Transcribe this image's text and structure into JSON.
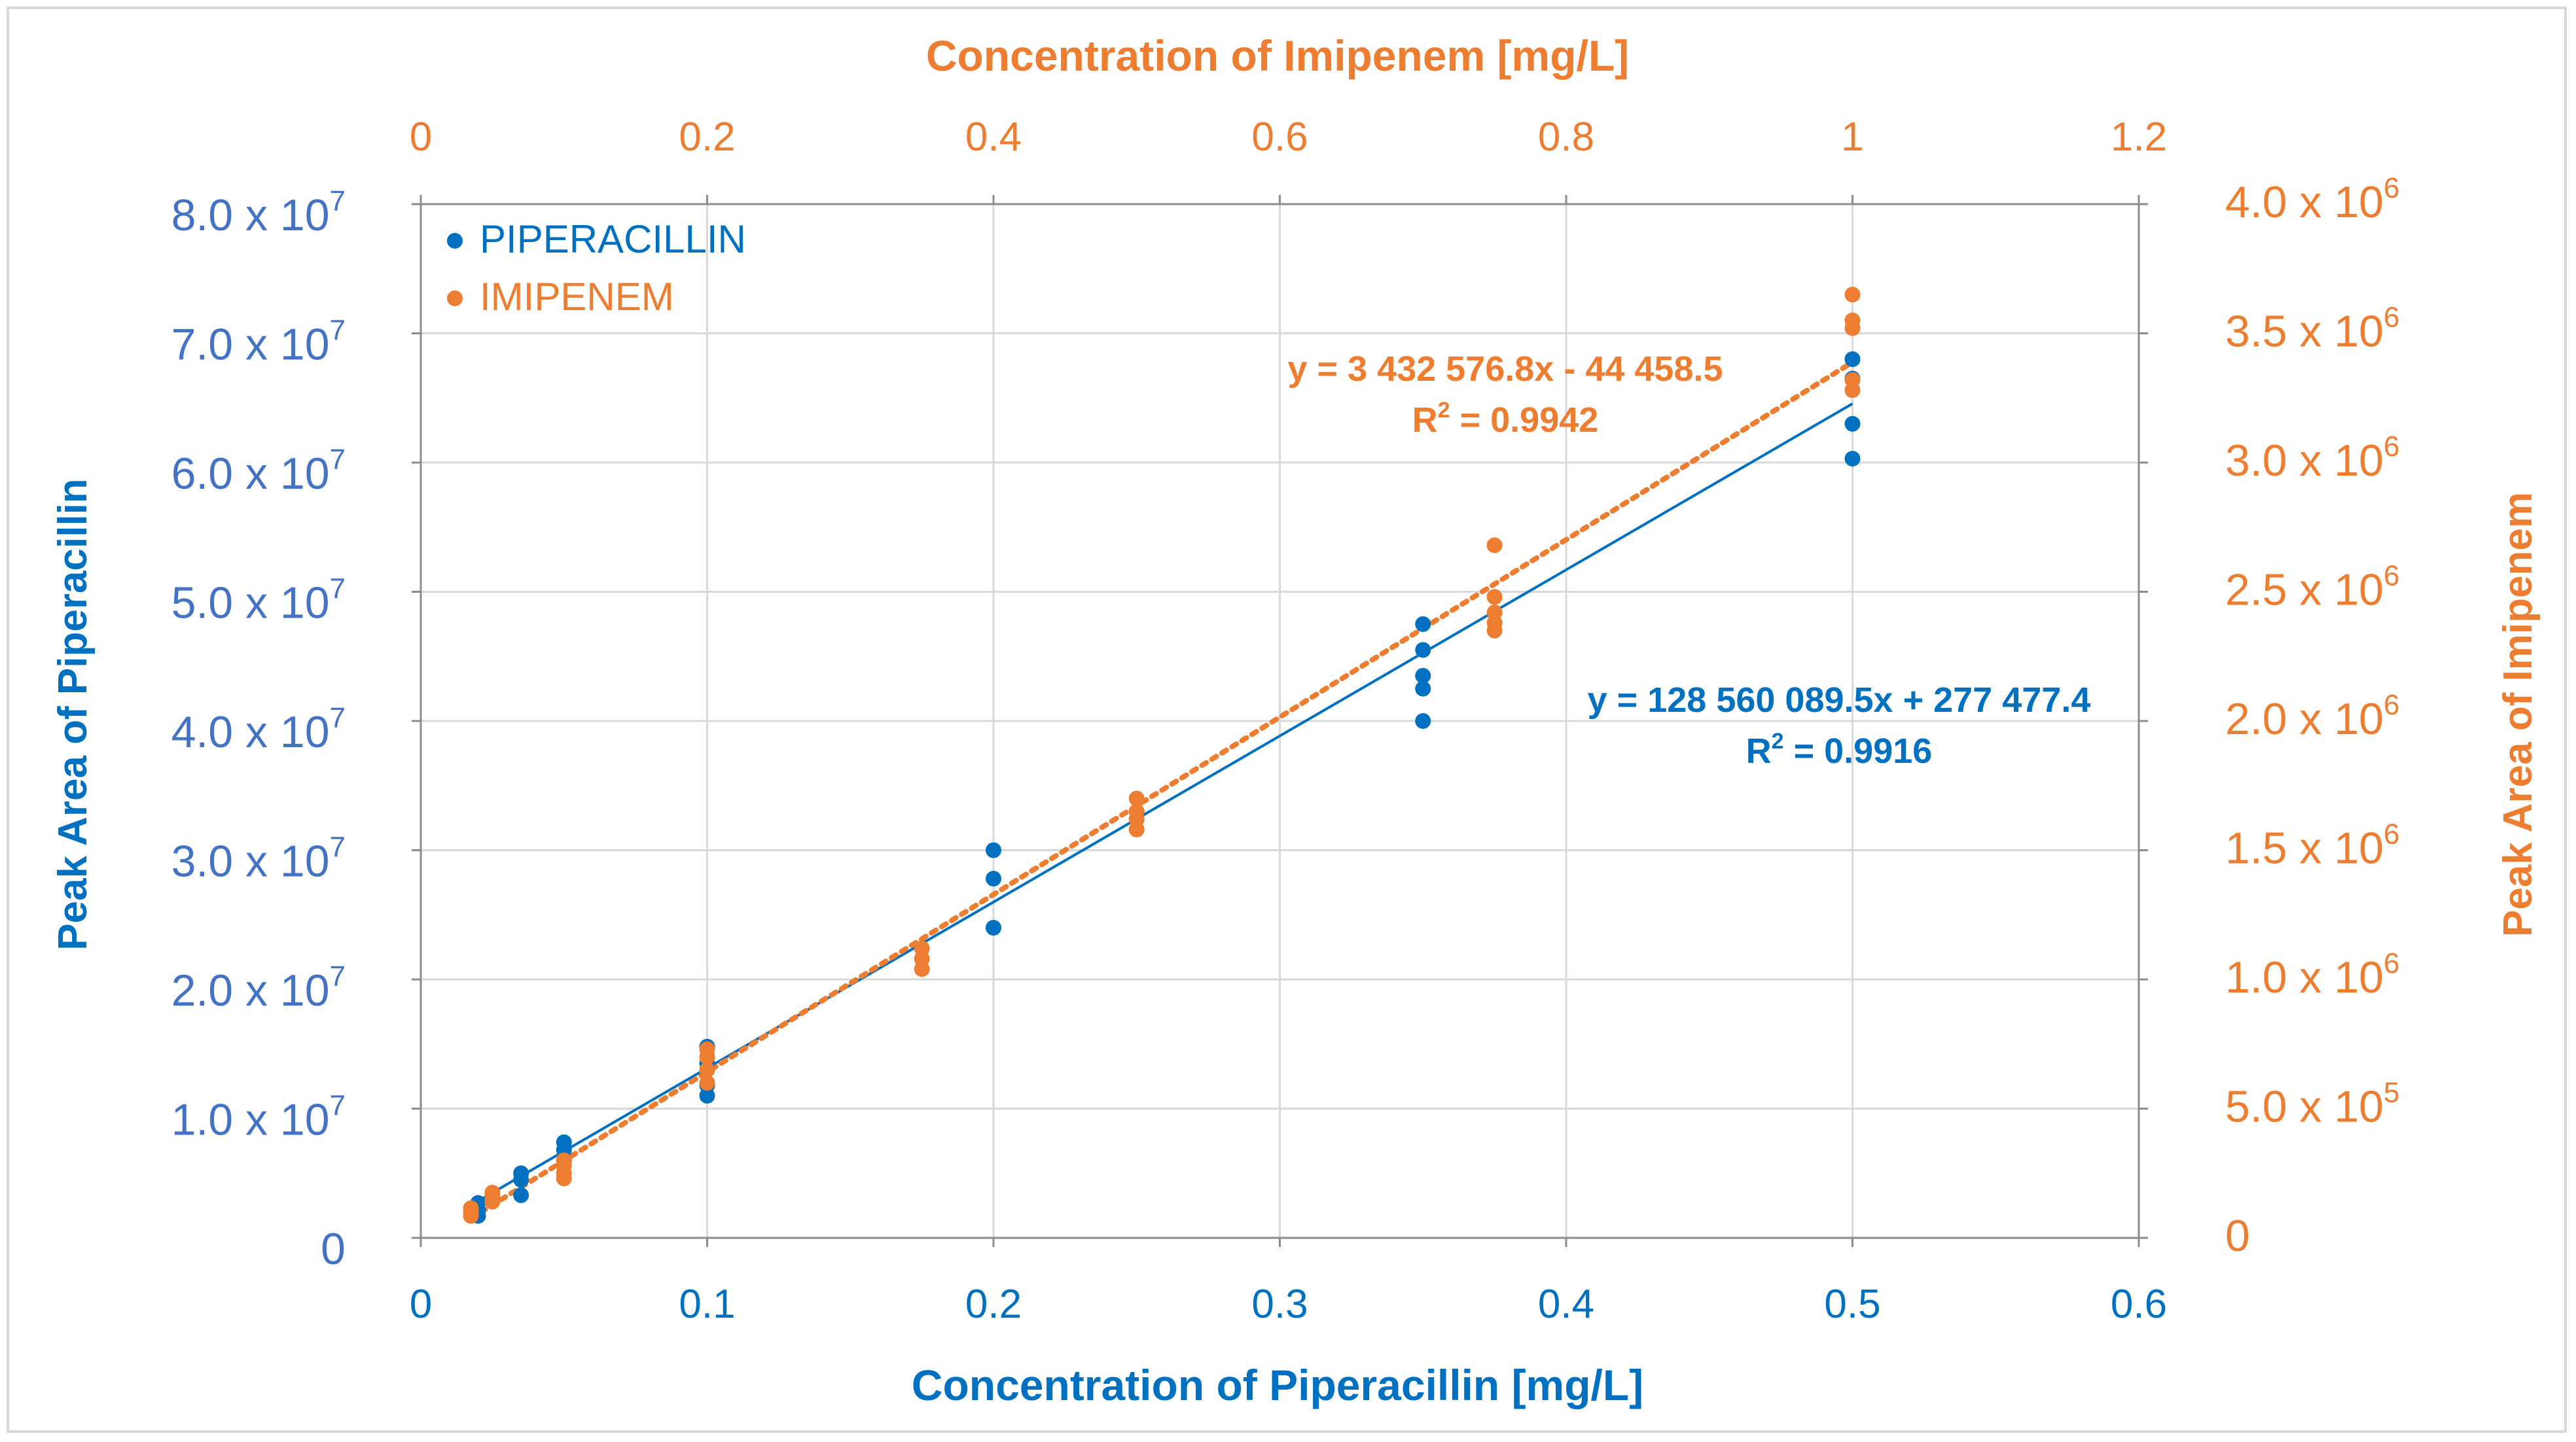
{
  "colors": {
    "piperacillin": "#0070C0",
    "imipenem": "#ED7D31",
    "axis_left": "#4472C4",
    "grid": "#d9d9d9",
    "axis_line": "#8c8c8c"
  },
  "chart_data": {
    "type": "scatter",
    "title_top": "Concentration of Imipenem [mg/L]",
    "xlabel": "Concentration of Piperacillin [mg/L]",
    "ylabel_left": "Peak Area of Piperacillin",
    "ylabel_right": "Peak Area of Imipenem",
    "x_bottom": {
      "min": 0,
      "max": 0.6,
      "ticks": [
        "0",
        "0.1",
        "0.2",
        "0.3",
        "0.4",
        "0.5",
        "0.6"
      ]
    },
    "x_top": {
      "min": 0,
      "max": 1.2,
      "ticks": [
        "0",
        "0.2",
        "0.4",
        "0.6",
        "0.8",
        "1",
        "1.2"
      ]
    },
    "y_left": {
      "min": 0,
      "max": 80000000,
      "ticks": [
        {
          "base": "0",
          "exp": ""
        },
        {
          "base": "1.0 x 10",
          "exp": "7"
        },
        {
          "base": "2.0 x 10",
          "exp": "7"
        },
        {
          "base": "3.0 x 10",
          "exp": "7"
        },
        {
          "base": "4.0 x 10",
          "exp": "7"
        },
        {
          "base": "5.0 x 10",
          "exp": "7"
        },
        {
          "base": "6.0 x 10",
          "exp": "7"
        },
        {
          "base": "7.0 x 10",
          "exp": "7"
        },
        {
          "base": "8.0 x 10",
          "exp": "7"
        }
      ]
    },
    "y_right": {
      "min": 0,
      "max": 4000000,
      "ticks": [
        {
          "base": "0",
          "exp": ""
        },
        {
          "base": "5.0 x 10",
          "exp": "5"
        },
        {
          "base": "1.0 x 10",
          "exp": "6"
        },
        {
          "base": "1.5 x 10",
          "exp": "6"
        },
        {
          "base": "2.0 x 10",
          "exp": "6"
        },
        {
          "base": "2.5 x 10",
          "exp": "6"
        },
        {
          "base": "3.0 x 10",
          "exp": "6"
        },
        {
          "base": "3.5 x 10",
          "exp": "6"
        },
        {
          "base": "4.0 x 10",
          "exp": "6"
        }
      ]
    },
    "legend_position": "top-left",
    "series": [
      {
        "name": "PIPERACILLIN",
        "axis": "bottom-left",
        "points": [
          [
            0.02,
            1700000
          ],
          [
            0.02,
            2100000
          ],
          [
            0.02,
            2700000
          ],
          [
            0.035,
            3300000
          ],
          [
            0.035,
            4500000
          ],
          [
            0.035,
            5000000
          ],
          [
            0.05,
            6000000
          ],
          [
            0.05,
            6800000
          ],
          [
            0.05,
            7400000
          ],
          [
            0.1,
            11000000
          ],
          [
            0.1,
            11800000
          ],
          [
            0.1,
            13500000
          ],
          [
            0.1,
            14800000
          ],
          [
            0.2,
            24000000
          ],
          [
            0.2,
            27800000
          ],
          [
            0.2,
            30000000
          ],
          [
            0.35,
            40000000
          ],
          [
            0.35,
            42500000
          ],
          [
            0.35,
            43500000
          ],
          [
            0.35,
            45500000
          ],
          [
            0.35,
            47500000
          ],
          [
            0.5,
            60300000
          ],
          [
            0.5,
            63000000
          ],
          [
            0.5,
            66500000
          ],
          [
            0.5,
            68000000
          ]
        ],
        "trendline": {
          "slope": 128560089.5,
          "intercept": 277477.4,
          "x_range": [
            0.02,
            0.5
          ],
          "style": "solid"
        },
        "equation": "y = 128 560 089.5x + 277 477.4",
        "r2_label": "R",
        "r2_exp": "2",
        "r2_value": " = 0.9916"
      },
      {
        "name": "IMIPENEM",
        "axis": "top-right",
        "points": [
          [
            0.035,
            85000
          ],
          [
            0.035,
            100000
          ],
          [
            0.035,
            115000
          ],
          [
            0.05,
            140000
          ],
          [
            0.05,
            160000
          ],
          [
            0.05,
            175000
          ],
          [
            0.1,
            230000
          ],
          [
            0.1,
            250000
          ],
          [
            0.1,
            280000
          ],
          [
            0.1,
            300000
          ],
          [
            0.2,
            600000
          ],
          [
            0.2,
            650000
          ],
          [
            0.2,
            700000
          ],
          [
            0.2,
            730000
          ],
          [
            0.35,
            1040000
          ],
          [
            0.35,
            1080000
          ],
          [
            0.35,
            1120000
          ],
          [
            0.5,
            1580000
          ],
          [
            0.5,
            1620000
          ],
          [
            0.5,
            1650000
          ],
          [
            0.5,
            1700000
          ],
          [
            0.75,
            2350000
          ],
          [
            0.75,
            2380000
          ],
          [
            0.75,
            2420000
          ],
          [
            0.75,
            2480000
          ],
          [
            0.75,
            2680000
          ],
          [
            1.0,
            3280000
          ],
          [
            1.0,
            3320000
          ],
          [
            1.0,
            3520000
          ],
          [
            1.0,
            3550000
          ],
          [
            1.0,
            3650000
          ]
        ],
        "trendline": {
          "slope": 3432576.8,
          "intercept": -44458.5,
          "x_range": [
            0.035,
            1.0
          ],
          "style": "dotted"
        },
        "equation": "y = 3 432 576.8x - 44 458.5",
        "r2_label": "R",
        "r2_exp": "2",
        "r2_value": " = 0.9942"
      }
    ]
  }
}
